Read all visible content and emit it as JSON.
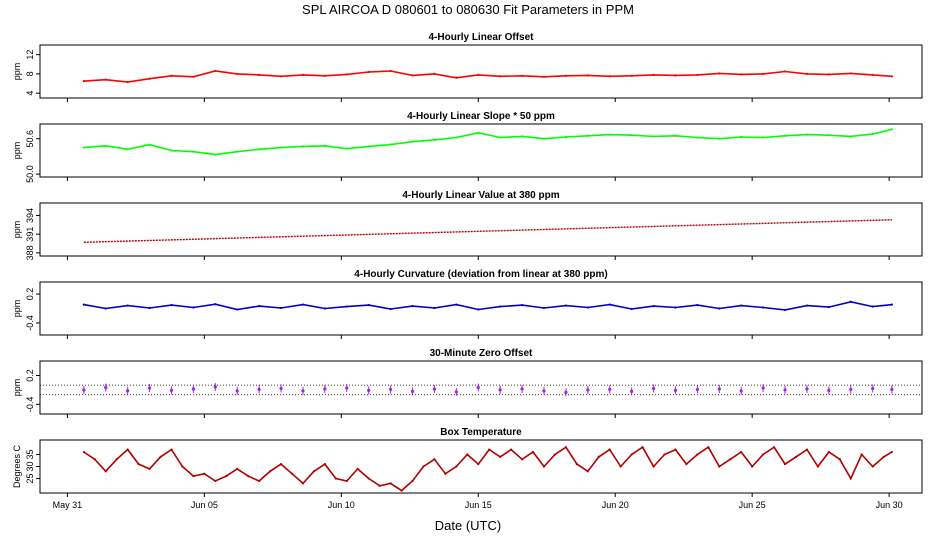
{
  "title": "SPL   AIRCOA D   080601 to 080630   Fit Parameters in PPM",
  "xlabel": "Date (UTC)",
  "x_axis": {
    "start_day": 0,
    "end_day": 32.2,
    "ticks": [
      {
        "day": 1,
        "label": "May 31"
      },
      {
        "day": 6,
        "label": "Jun 05"
      },
      {
        "day": 11,
        "label": "Jun 10"
      },
      {
        "day": 16,
        "label": "Jun 15"
      },
      {
        "day": 21,
        "label": "Jun 20"
      },
      {
        "day": 26,
        "label": "Jun 25"
      },
      {
        "day": 31,
        "label": "Jun 30"
      }
    ]
  },
  "chart_data": [
    {
      "type": "line",
      "title": "4-Hourly Linear Offset",
      "ylabel": "ppm",
      "ylim": [
        3,
        14
      ],
      "yticks": [
        4,
        8,
        12
      ],
      "ytick_labels": [
        "4",
        "8",
        "12"
      ],
      "color": "#ff0000",
      "style": "line",
      "x": [
        1.6,
        2.4,
        3.2,
        4.0,
        4.8,
        5.6,
        6.4,
        7.2,
        8.0,
        8.8,
        9.6,
        10.4,
        11.2,
        12.0,
        12.8,
        13.6,
        14.4,
        15.2,
        16.0,
        16.8,
        17.6,
        18.4,
        19.2,
        20.0,
        20.8,
        21.6,
        22.4,
        23.2,
        24.0,
        24.8,
        25.6,
        26.4,
        27.2,
        28.0,
        28.8,
        29.6,
        30.4,
        31.1
      ],
      "values": [
        6.5,
        6.8,
        6.3,
        7.0,
        7.6,
        7.4,
        8.6,
        8.0,
        7.8,
        7.5,
        7.8,
        7.6,
        7.9,
        8.4,
        8.6,
        7.7,
        8.0,
        7.2,
        7.8,
        7.5,
        7.6,
        7.4,
        7.6,
        7.7,
        7.5,
        7.6,
        7.8,
        7.7,
        7.8,
        8.1,
        7.9,
        8.0,
        8.5,
        8.0,
        7.9,
        8.1,
        7.8,
        7.5
      ]
    },
    {
      "type": "line",
      "title": "4-Hourly Linear Slope * 50 ppm",
      "ylabel": "ppm",
      "ylim": [
        49.95,
        50.85
      ],
      "yticks": [
        50.0,
        50.6
      ],
      "ytick_labels": [
        "50.0",
        "50.6"
      ],
      "color": "#00ff00",
      "style": "line",
      "x": [
        1.6,
        2.4,
        3.2,
        4.0,
        4.8,
        5.6,
        6.4,
        7.2,
        8.0,
        8.8,
        9.6,
        10.4,
        11.2,
        12.0,
        12.8,
        13.6,
        14.4,
        15.2,
        16.0,
        16.8,
        17.6,
        18.4,
        19.2,
        20.0,
        20.8,
        21.6,
        22.4,
        23.2,
        24.0,
        24.8,
        25.6,
        26.4,
        27.2,
        28.0,
        28.8,
        29.6,
        30.4,
        31.1
      ],
      "values": [
        50.45,
        50.48,
        50.42,
        50.5,
        50.4,
        50.38,
        50.33,
        50.38,
        50.42,
        50.45,
        50.47,
        50.48,
        50.43,
        50.47,
        50.5,
        50.55,
        50.58,
        50.62,
        50.7,
        50.62,
        50.64,
        50.6,
        50.63,
        50.65,
        50.67,
        50.66,
        50.64,
        50.65,
        50.62,
        50.6,
        50.63,
        50.62,
        50.65,
        50.67,
        50.66,
        50.64,
        50.68,
        50.76
      ]
    },
    {
      "type": "line",
      "title": "4-Hourly Linear Value at 380 ppm",
      "ylabel": "ppm",
      "ylim": [
        387.5,
        396
      ],
      "yticks": [
        388,
        391,
        394
      ],
      "ytick_labels": [
        "388",
        "391",
        "394"
      ],
      "color": "#b00000",
      "style": "dotted",
      "x": [
        1.6,
        31.1
      ],
      "values": [
        389.7,
        393.3
      ]
    },
    {
      "type": "line",
      "title": "4-Hourly Curvature (deviation from linear at 380 ppm)",
      "ylabel": "ppm",
      "ylim": [
        -0.65,
        0.45
      ],
      "yticks": [
        -0.4,
        0.2
      ],
      "ytick_labels": [
        "-0.4",
        "0.2"
      ],
      "color": "#0000c8",
      "style": "line",
      "x": [
        1.6,
        2.4,
        3.2,
        4.0,
        4.8,
        5.6,
        6.4,
        7.2,
        8.0,
        8.8,
        9.6,
        10.4,
        11.2,
        12.0,
        12.8,
        13.6,
        14.4,
        15.2,
        16.0,
        16.8,
        17.6,
        18.4,
        19.2,
        20.0,
        20.8,
        21.6,
        22.4,
        23.2,
        24.0,
        24.8,
        25.6,
        26.4,
        27.2,
        28.0,
        28.8,
        29.6,
        30.4,
        31.1
      ],
      "values": [
        -0.02,
        -0.1,
        -0.04,
        -0.09,
        -0.03,
        -0.08,
        -0.01,
        -0.12,
        -0.05,
        -0.09,
        -0.02,
        -0.1,
        -0.06,
        -0.03,
        -0.11,
        -0.05,
        -0.09,
        -0.02,
        -0.12,
        -0.06,
        -0.03,
        -0.09,
        -0.04,
        -0.08,
        -0.02,
        -0.11,
        -0.05,
        -0.08,
        -0.03,
        -0.1,
        -0.04,
        -0.08,
        -0.13,
        -0.04,
        -0.07,
        0.04,
        -0.06,
        -0.02
      ]
    },
    {
      "type": "scatter",
      "title": "30-Minute Zero Offset",
      "ylabel": "ppm",
      "ylim": [
        -0.6,
        0.5
      ],
      "yticks": [
        -0.4,
        0.2
      ],
      "ytick_labels": [
        "-0.4",
        "0.2"
      ],
      "reference_lines": [
        0.0,
        -0.2
      ],
      "color": "#a020f0",
      "style": "scatter",
      "x": [
        1.6,
        2.4,
        3.2,
        4.0,
        4.8,
        5.6,
        6.4,
        7.2,
        8.0,
        8.8,
        9.6,
        10.4,
        11.2,
        12.0,
        12.8,
        13.6,
        14.4,
        15.2,
        16.0,
        16.8,
        17.6,
        18.4,
        19.2,
        20.0,
        20.8,
        21.6,
        22.4,
        23.2,
        24.0,
        24.8,
        25.6,
        26.4,
        27.2,
        28.0,
        28.8,
        29.6,
        30.4,
        31.1
      ],
      "values": [
        -0.1,
        -0.05,
        -0.12,
        -0.06,
        -0.11,
        -0.08,
        -0.04,
        -0.12,
        -0.09,
        -0.07,
        -0.12,
        -0.08,
        -0.06,
        -0.11,
        -0.09,
        -0.13,
        -0.08,
        -0.14,
        -0.05,
        -0.1,
        -0.08,
        -0.12,
        -0.15,
        -0.1,
        -0.09,
        -0.13,
        -0.07,
        -0.11,
        -0.09,
        -0.08,
        -0.12,
        -0.06,
        -0.1,
        -0.08,
        -0.11,
        -0.09,
        -0.07,
        -0.09
      ]
    },
    {
      "type": "line",
      "title": "Box Temperature",
      "ylabel": "Degrees C",
      "ylim": [
        19,
        41
      ],
      "yticks": [
        25,
        30,
        35
      ],
      "ytick_labels": [
        "25",
        "30",
        "35"
      ],
      "color": "#b00000",
      "style": "line",
      "x": [
        1.6,
        2.0,
        2.4,
        2.8,
        3.2,
        3.6,
        4.0,
        4.4,
        4.8,
        5.2,
        5.6,
        6.0,
        6.4,
        6.8,
        7.2,
        7.6,
        8.0,
        8.4,
        8.8,
        9.2,
        9.6,
        10.0,
        10.4,
        10.8,
        11.2,
        11.6,
        12.0,
        12.4,
        12.8,
        13.2,
        13.6,
        14.0,
        14.4,
        14.8,
        15.2,
        15.6,
        16.0,
        16.4,
        16.8,
        17.2,
        17.6,
        18.0,
        18.4,
        18.8,
        19.2,
        19.6,
        20.0,
        20.4,
        20.8,
        21.2,
        21.6,
        22.0,
        22.4,
        22.8,
        23.2,
        23.6,
        24.0,
        24.4,
        24.8,
        25.2,
        25.6,
        26.0,
        26.4,
        26.8,
        27.2,
        27.6,
        28.0,
        28.4,
        28.8,
        29.2,
        29.6,
        30.0,
        30.4,
        30.8,
        31.1
      ],
      "values": [
        36,
        33,
        28,
        33,
        37,
        31,
        29,
        34,
        37,
        30,
        26,
        27,
        24,
        26,
        29,
        26,
        24,
        28,
        31,
        27,
        23,
        28,
        31,
        25,
        24,
        29,
        25,
        22,
        23,
        20,
        24,
        30,
        33,
        27,
        30,
        35,
        31,
        37,
        34,
        37,
        33,
        36,
        30,
        35,
        38,
        31,
        28,
        34,
        37,
        30,
        35,
        38,
        30,
        35,
        37,
        31,
        35,
        38,
        30,
        33,
        36,
        30,
        35,
        38,
        31,
        34,
        37,
        30,
        36,
        33,
        25,
        35,
        30,
        34,
        36
      ]
    }
  ]
}
